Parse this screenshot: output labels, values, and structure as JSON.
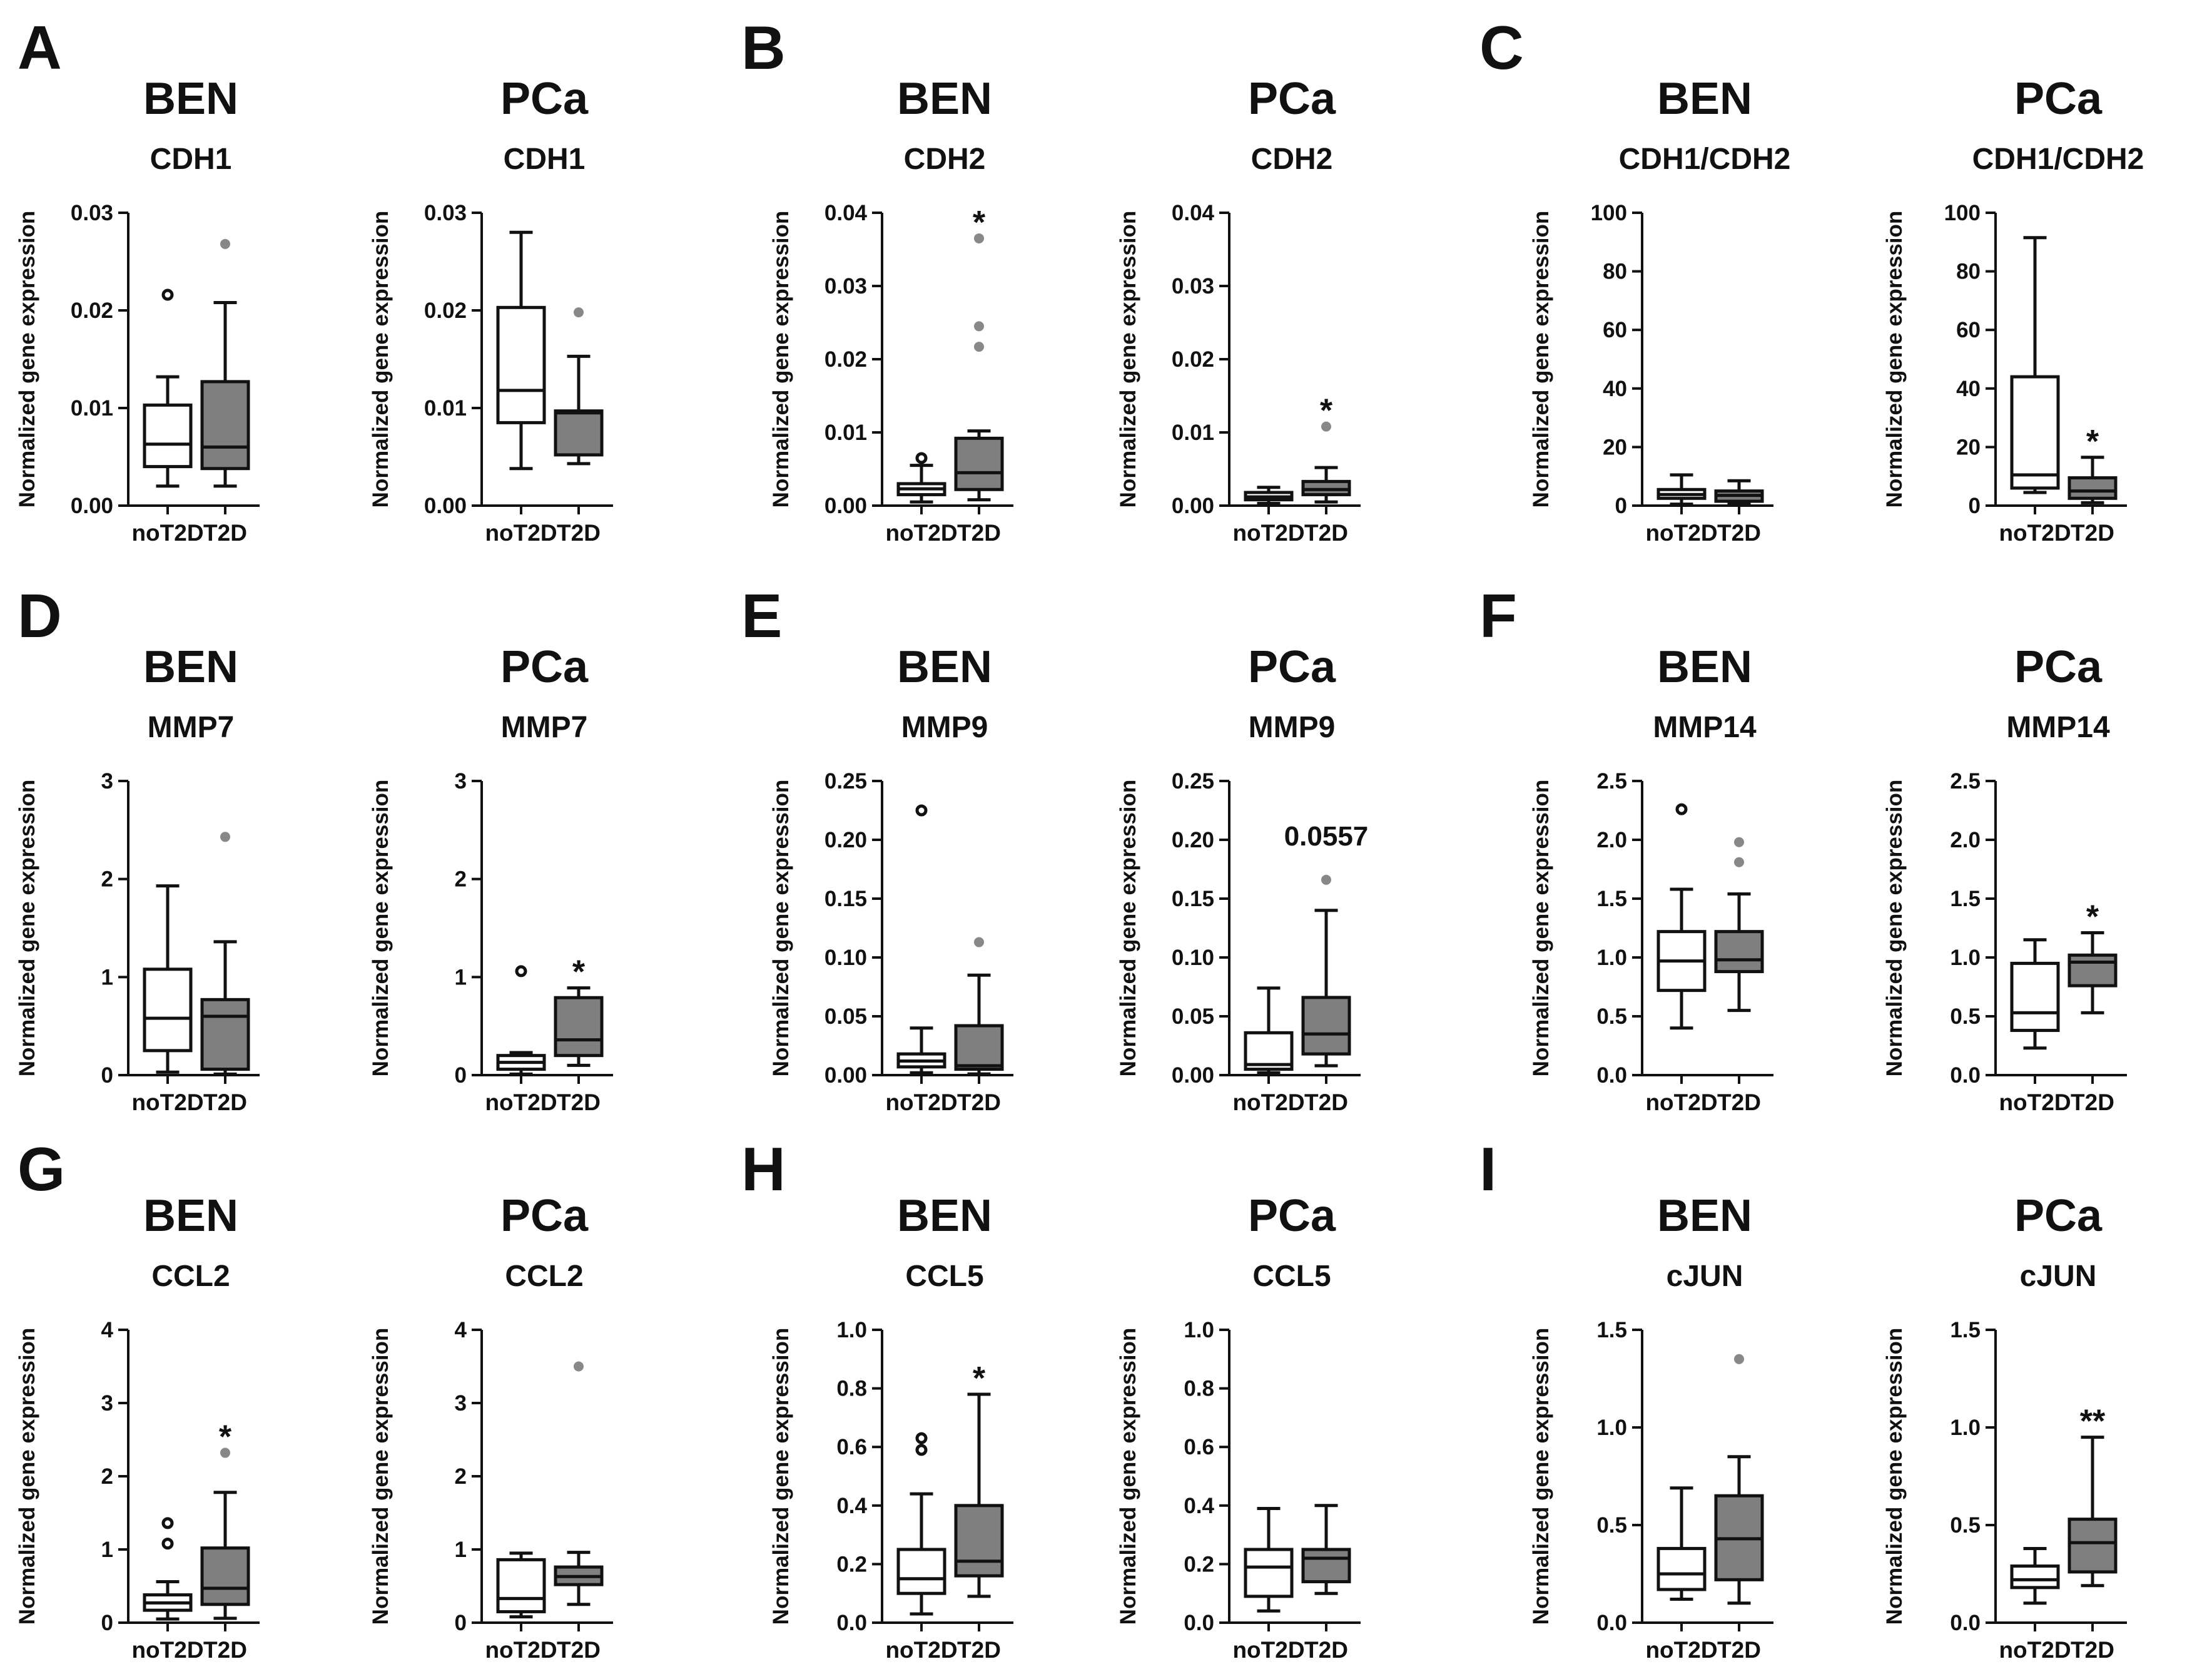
{
  "colors": {
    "noT2D_box": "#ffffff",
    "T2D_box": "#7f7f7f",
    "outlier_T2D": "#888888",
    "ink": "#111111"
  },
  "chart_data": [
    {
      "type": "box",
      "panel": "A",
      "group": "BEN",
      "gene": "CDH1",
      "ylabel": "Normalized gene expression",
      "ylim": [
        0,
        0.03
      ],
      "yticks": [
        "0.00",
        "0.01",
        "0.02",
        "0.03"
      ],
      "categories": [
        "noT2D",
        "T2D"
      ],
      "boxes": [
        {
          "min": 0.002,
          "q1": 0.004,
          "median": 0.0063,
          "q3": 0.0103,
          "max": 0.0132,
          "outliers": [
            0.0216
          ]
        },
        {
          "min": 0.002,
          "q1": 0.0038,
          "median": 0.006,
          "q3": 0.0127,
          "max": 0.0208,
          "outliers": [
            0.0268
          ]
        }
      ],
      "significance": ""
    },
    {
      "type": "box",
      "panel": "",
      "group": "PCa",
      "gene": "CDH1",
      "ylabel": "Normalized gene expression",
      "ylim": [
        0,
        0.03
      ],
      "yticks": [
        "0.00",
        "0.01",
        "0.02",
        "0.03"
      ],
      "categories": [
        "noT2D",
        "T2D"
      ],
      "boxes": [
        {
          "min": 0.0038,
          "q1": 0.0085,
          "median": 0.0118,
          "q3": 0.0203,
          "max": 0.028,
          "outliers": []
        },
        {
          "min": 0.0043,
          "q1": 0.0052,
          "median": 0.0095,
          "q3": 0.0097,
          "max": 0.0153,
          "outliers": [
            0.0198
          ]
        }
      ],
      "significance": ""
    },
    {
      "type": "box",
      "panel": "B",
      "group": "BEN",
      "gene": "CDH2",
      "ylabel": "Normalized gene expression",
      "ylim": [
        0,
        0.04
      ],
      "yticks": [
        "0.00",
        "0.01",
        "0.02",
        "0.03",
        "0.04"
      ],
      "categories": [
        "noT2D",
        "T2D"
      ],
      "boxes": [
        {
          "min": 0.0005,
          "q1": 0.0015,
          "median": 0.0023,
          "q3": 0.003,
          "max": 0.0055,
          "outliers": [
            0.0065
          ]
        },
        {
          "min": 0.0008,
          "q1": 0.0022,
          "median": 0.0045,
          "q3": 0.0092,
          "max": 0.0102,
          "outliers": [
            0.0217,
            0.0245,
            0.0365
          ]
        }
      ],
      "significance": "*"
    },
    {
      "type": "box",
      "panel": "",
      "group": "PCa",
      "gene": "CDH2",
      "ylabel": "Normalized gene expression",
      "ylim": [
        0,
        0.04
      ],
      "yticks": [
        "0.00",
        "0.01",
        "0.02",
        "0.03",
        "0.04"
      ],
      "categories": [
        "noT2D",
        "T2D"
      ],
      "boxes": [
        {
          "min": 0.0003,
          "q1": 0.0008,
          "median": 0.0012,
          "q3": 0.0018,
          "max": 0.0025,
          "outliers": []
        },
        {
          "min": 0.0005,
          "q1": 0.0015,
          "median": 0.0022,
          "q3": 0.0033,
          "max": 0.0052,
          "outliers": [
            0.0108
          ]
        }
      ],
      "significance": "*"
    },
    {
      "type": "box",
      "panel": "C",
      "group": "BEN",
      "gene": "CDH1/CDH2",
      "ylabel": "Normalized gene expression",
      "ylim": [
        0,
        100
      ],
      "yticks": [
        "0",
        "20",
        "40",
        "60",
        "80",
        "100"
      ],
      "categories": [
        "noT2D",
        "T2D"
      ],
      "boxes": [
        {
          "min": 0.5,
          "q1": 2.5,
          "median": 3.8,
          "q3": 5.5,
          "max": 10.5,
          "outliers": []
        },
        {
          "min": 0.5,
          "q1": 1.5,
          "median": 3.5,
          "q3": 5,
          "max": 8.5,
          "outliers": []
        }
      ],
      "significance": ""
    },
    {
      "type": "box",
      "panel": "",
      "group": "PCa",
      "gene": "CDH1/CDH2",
      "ylabel": "Normalized gene expression",
      "ylim": [
        0,
        100
      ],
      "yticks": [
        "0",
        "20",
        "40",
        "60",
        "80",
        "100"
      ],
      "categories": [
        "noT2D",
        "T2D"
      ],
      "boxes": [
        {
          "min": 4.5,
          "q1": 6,
          "median": 10.5,
          "q3": 44,
          "max": 91.5,
          "outliers": []
        },
        {
          "min": 1,
          "q1": 2.5,
          "median": 5,
          "q3": 9.5,
          "max": 16.5,
          "outliers": []
        }
      ],
      "significance": "*"
    },
    {
      "type": "box",
      "panel": "D",
      "group": "BEN",
      "gene": "MMP7",
      "ylabel": "Normalized gene expression",
      "ylim": [
        0,
        3
      ],
      "yticks": [
        "0",
        "1",
        "2",
        "3"
      ],
      "categories": [
        "noT2D",
        "T2D"
      ],
      "boxes": [
        {
          "min": 0.03,
          "q1": 0.25,
          "median": 0.58,
          "q3": 1.08,
          "max": 1.93,
          "outliers": []
        },
        {
          "min": 0.01,
          "q1": 0.06,
          "median": 0.6,
          "q3": 0.77,
          "max": 1.36,
          "outliers": [
            2.43
          ]
        }
      ],
      "significance": ""
    },
    {
      "type": "box",
      "panel": "",
      "group": "PCa",
      "gene": "MMP7",
      "ylabel": "Normalized gene expression",
      "ylim": [
        0,
        3
      ],
      "yticks": [
        "0",
        "1",
        "2",
        "3"
      ],
      "categories": [
        "noT2D",
        "T2D"
      ],
      "boxes": [
        {
          "min": 0.01,
          "q1": 0.06,
          "median": 0.13,
          "q3": 0.2,
          "max": 0.23,
          "outliers": [
            1.06
          ]
        },
        {
          "min": 0.1,
          "q1": 0.2,
          "median": 0.36,
          "q3": 0.79,
          "max": 0.89,
          "outliers": []
        }
      ],
      "significance": "*"
    },
    {
      "type": "box",
      "panel": "E",
      "group": "BEN",
      "gene": "MMP9",
      "ylabel": "Normalized gene expression",
      "ylim": [
        0,
        0.25
      ],
      "yticks": [
        "0.00",
        "0.05",
        "0.10",
        "0.15",
        "0.20",
        "0.25"
      ],
      "categories": [
        "noT2D",
        "T2D"
      ],
      "boxes": [
        {
          "min": 0.002,
          "q1": 0.007,
          "median": 0.012,
          "q3": 0.018,
          "max": 0.04,
          "outliers": [
            0.225
          ]
        },
        {
          "min": 0.001,
          "q1": 0.005,
          "median": 0.008,
          "q3": 0.042,
          "max": 0.085,
          "outliers": [
            0.113
          ]
        }
      ],
      "significance": ""
    },
    {
      "type": "box",
      "panel": "",
      "group": "PCa",
      "gene": "MMP9",
      "ylabel": "Normalized gene expression",
      "ylim": [
        0,
        0.25
      ],
      "yticks": [
        "0.00",
        "0.05",
        "0.10",
        "0.15",
        "0.20",
        "0.25"
      ],
      "categories": [
        "noT2D",
        "T2D"
      ],
      "boxes": [
        {
          "min": 0.002,
          "q1": 0.005,
          "median": 0.009,
          "q3": 0.036,
          "max": 0.074,
          "outliers": []
        },
        {
          "min": 0.008,
          "q1": 0.018,
          "median": 0.035,
          "q3": 0.066,
          "max": 0.14,
          "outliers": [
            0.166
          ]
        }
      ],
      "significance": "0.0557"
    },
    {
      "type": "box",
      "panel": "F",
      "group": "BEN",
      "gene": "MMP14",
      "ylabel": "Normalized gene expression",
      "ylim": [
        0,
        2.5
      ],
      "yticks": [
        "0.0",
        "0.5",
        "1.0",
        "1.5",
        "2.0",
        "2.5"
      ],
      "categories": [
        "noT2D",
        "T2D"
      ],
      "boxes": [
        {
          "min": 0.4,
          "q1": 0.72,
          "median": 0.97,
          "q3": 1.22,
          "max": 1.58,
          "outliers": [
            2.26
          ]
        },
        {
          "min": 0.55,
          "q1": 0.88,
          "median": 0.98,
          "q3": 1.22,
          "max": 1.54,
          "outliers": [
            1.81,
            1.98
          ]
        }
      ],
      "significance": ""
    },
    {
      "type": "box",
      "panel": "",
      "group": "PCa",
      "gene": "MMP14",
      "ylabel": "Normalized gene expression",
      "ylim": [
        0,
        2.5
      ],
      "yticks": [
        "0.0",
        "0.5",
        "1.0",
        "1.5",
        "2.0",
        "2.5"
      ],
      "categories": [
        "noT2D",
        "T2D"
      ],
      "boxes": [
        {
          "min": 0.23,
          "q1": 0.38,
          "median": 0.53,
          "q3": 0.95,
          "max": 1.15,
          "outliers": []
        },
        {
          "min": 0.53,
          "q1": 0.76,
          "median": 0.96,
          "q3": 1.02,
          "max": 1.21,
          "outliers": []
        }
      ],
      "significance": "*"
    },
    {
      "type": "box",
      "panel": "G",
      "group": "BEN",
      "gene": "CCL2",
      "ylabel": "Normalized gene expression",
      "ylim": [
        0,
        4
      ],
      "yticks": [
        "0",
        "1",
        "2",
        "3",
        "4"
      ],
      "categories": [
        "noT2D",
        "T2D"
      ],
      "boxes": [
        {
          "min": 0.05,
          "q1": 0.17,
          "median": 0.27,
          "q3": 0.38,
          "max": 0.56,
          "outliers": [
            1.08,
            1.36
          ]
        },
        {
          "min": 0.06,
          "q1": 0.25,
          "median": 0.47,
          "q3": 1.02,
          "max": 1.78,
          "outliers": [
            2.32
          ]
        }
      ],
      "significance": "*"
    },
    {
      "type": "box",
      "panel": "",
      "group": "PCa",
      "gene": "CCL2",
      "ylabel": "Normalized gene expression",
      "ylim": [
        0,
        4
      ],
      "yticks": [
        "0",
        "1",
        "2",
        "3",
        "4"
      ],
      "categories": [
        "noT2D",
        "T2D"
      ],
      "boxes": [
        {
          "min": 0.08,
          "q1": 0.15,
          "median": 0.33,
          "q3": 0.86,
          "max": 0.95,
          "outliers": []
        },
        {
          "min": 0.25,
          "q1": 0.52,
          "median": 0.63,
          "q3": 0.76,
          "max": 0.96,
          "outliers": [
            3.5
          ]
        }
      ],
      "significance": ""
    },
    {
      "type": "box",
      "panel": "H",
      "group": "BEN",
      "gene": "CCL5",
      "ylabel": "Normalized gene expression",
      "ylim": [
        0,
        1.0
      ],
      "yticks": [
        "0.0",
        "0.2",
        "0.4",
        "0.6",
        "0.8",
        "1.0"
      ],
      "categories": [
        "noT2D",
        "T2D"
      ],
      "boxes": [
        {
          "min": 0.03,
          "q1": 0.1,
          "median": 0.15,
          "q3": 0.25,
          "max": 0.44,
          "outliers": [
            0.59,
            0.63
          ]
        },
        {
          "min": 0.09,
          "q1": 0.16,
          "median": 0.21,
          "q3": 0.4,
          "max": 0.78,
          "outliers": []
        }
      ],
      "significance": "*"
    },
    {
      "type": "box",
      "panel": "",
      "group": "PCa",
      "gene": "CCL5",
      "ylabel": "Normalized gene expression",
      "ylim": [
        0,
        1.0
      ],
      "yticks": [
        "0.0",
        "0.2",
        "0.4",
        "0.6",
        "0.8",
        "1.0"
      ],
      "categories": [
        "noT2D",
        "T2D"
      ],
      "boxes": [
        {
          "min": 0.04,
          "q1": 0.09,
          "median": 0.19,
          "q3": 0.25,
          "max": 0.39,
          "outliers": []
        },
        {
          "min": 0.1,
          "q1": 0.14,
          "median": 0.22,
          "q3": 0.25,
          "max": 0.4,
          "outliers": []
        }
      ],
      "significance": ""
    },
    {
      "type": "box",
      "panel": "I",
      "group": "BEN",
      "gene": "cJUN",
      "ylabel": "Normalized gene expression",
      "ylim": [
        0,
        1.5
      ],
      "yticks": [
        "0.0",
        "0.5",
        "1.0",
        "1.5"
      ],
      "categories": [
        "noT2D",
        "T2D"
      ],
      "boxes": [
        {
          "min": 0.12,
          "q1": 0.17,
          "median": 0.25,
          "q3": 0.38,
          "max": 0.69,
          "outliers": []
        },
        {
          "min": 0.1,
          "q1": 0.22,
          "median": 0.43,
          "q3": 0.65,
          "max": 0.85,
          "outliers": [
            1.35
          ]
        }
      ],
      "significance": ""
    },
    {
      "type": "box",
      "panel": "",
      "group": "PCa",
      "gene": "cJUN",
      "ylabel": "Normalized gene expression",
      "ylim": [
        0,
        1.5
      ],
      "yticks": [
        "0.0",
        "0.5",
        "1.0",
        "1.5"
      ],
      "categories": [
        "noT2D",
        "T2D"
      ],
      "boxes": [
        {
          "min": 0.1,
          "q1": 0.18,
          "median": 0.22,
          "q3": 0.29,
          "max": 0.38,
          "outliers": []
        },
        {
          "min": 0.19,
          "q1": 0.26,
          "median": 0.41,
          "q3": 0.53,
          "max": 0.95,
          "outliers": []
        }
      ],
      "significance": "**"
    }
  ]
}
